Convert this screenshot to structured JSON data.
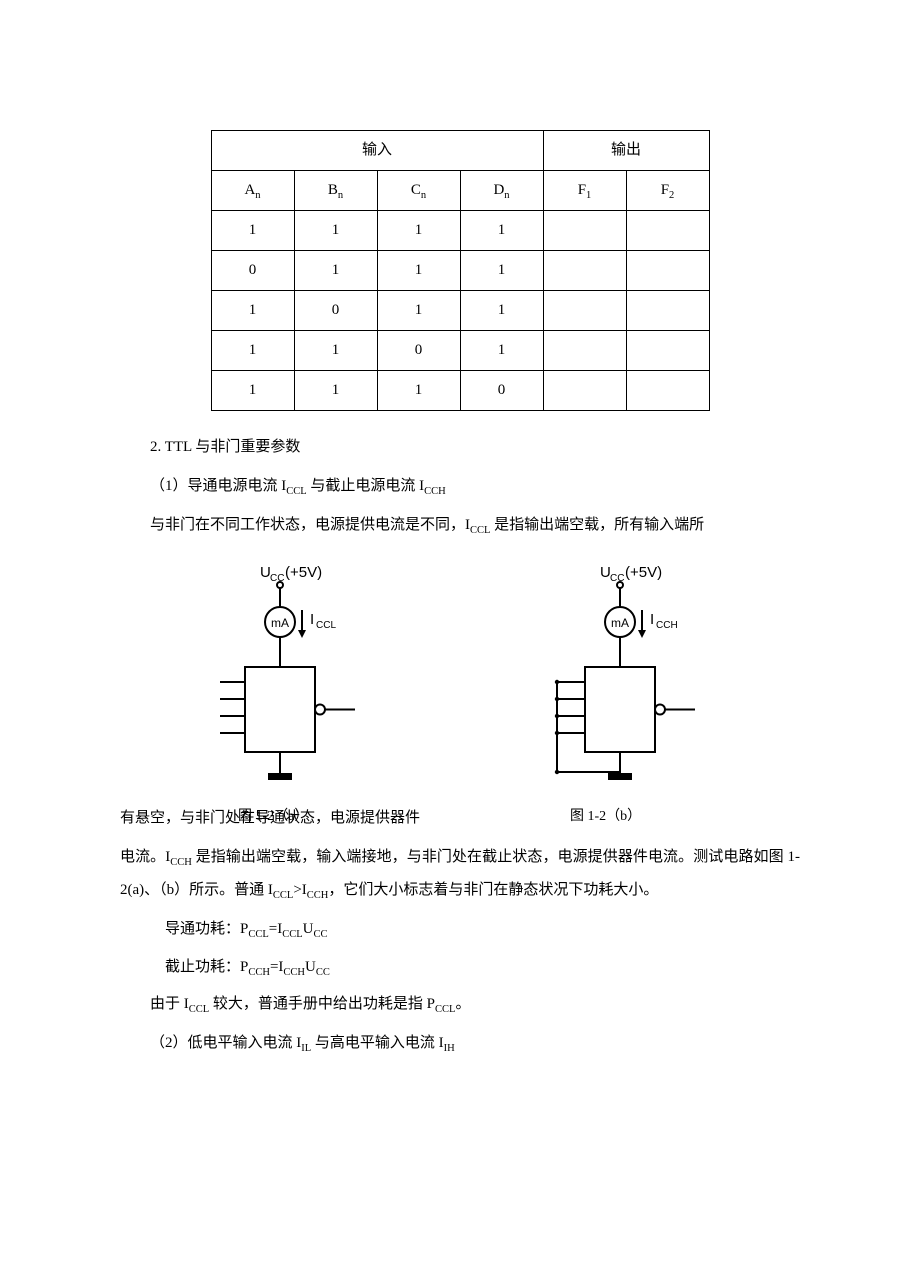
{
  "table": {
    "group_headers": {
      "input": "输入",
      "output": "输出"
    },
    "col_headers": [
      "A",
      "B",
      "C",
      "D",
      "F",
      "F"
    ],
    "col_subs": [
      "n",
      "n",
      "n",
      "n",
      "1",
      "2"
    ],
    "rows": [
      [
        "1",
        "1",
        "1",
        "1",
        "",
        ""
      ],
      [
        "0",
        "1",
        "1",
        "1",
        "",
        ""
      ],
      [
        "1",
        "0",
        "1",
        "1",
        "",
        ""
      ],
      [
        "1",
        "1",
        "0",
        "1",
        "",
        ""
      ],
      [
        "1",
        "1",
        "1",
        "0",
        "",
        ""
      ]
    ]
  },
  "text": {
    "sec2_title": "2. TTL 与非门重要参数",
    "p1_1": "（1）导通电源电流 I",
    "p1_sub1": "CCL",
    "p1_2": " 与截止电源电流 I",
    "p1_sub2": "CCH",
    "p2_1": "与非门在不同工作状态，电源提供电流是不同，I",
    "p2_sub1": "CCL",
    "p2_2": " 是指输出端空载，所有输入端所",
    "fig_a_label": "图 1-2（a）",
    "fig_b_label": "图 1-2（b）",
    "overlap_1": "有悬空，与非门处在导通状态，电源提供器件",
    "p3_1": "电流。I",
    "p3_sub1": "CCH",
    "p3_2": " 是指输出端空载，输入端接地，与非门处在截止状态，电源提供器件电流。测试电路如图 1-2(a)、（b）所示。普通 I",
    "p3_sub2": "CCL",
    "p3_3": ">I",
    "p3_sub3": "CCH",
    "p3_4": "，它们大小标志着与非门在静态状况下功耗大小。",
    "f1_1": "导通功耗：P",
    "f1_s1": "CCL",
    "f1_2": "=I",
    "f1_s2": "CCL",
    "f1_3": "U",
    "f1_s3": "CC",
    "f2_1": "截止功耗：P",
    "f2_s1": "CCH",
    "f2_2": "=I",
    "f2_s2": "CCH",
    "f2_3": "U",
    "f2_s3": "CC",
    "p4_1": "由于 I",
    "p4_s1": "CCL",
    "p4_2": " 较大，普通手册中给出功耗是指 P",
    "p4_s2": "CCL",
    "p4_3": "。",
    "p5_1": "（2）低电平输入电流 I",
    "p5_s1": "IL",
    "p5_2": " 与高电平输入电流 I",
    "p5_s2": "IH"
  },
  "figures": {
    "ucc_label": "U",
    "ucc_sub": "CC",
    "ucc_volt": "(+5V)",
    "ma_label": "mA",
    "iccl": "CCL",
    "icch": "CCH",
    "stroke": "#000000",
    "stroke_width": 2,
    "font_family": "Arial, sans-serif"
  }
}
